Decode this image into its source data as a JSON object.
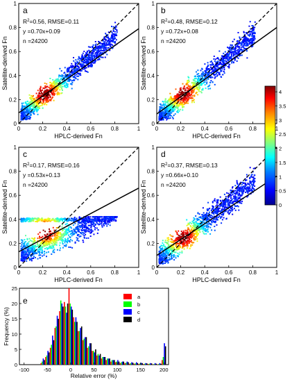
{
  "figure": {
    "colorbar": {
      "ticks": [
        "4",
        "3.5",
        "3",
        "2.5",
        "2",
        "1.5",
        "1",
        "0.5",
        "0"
      ],
      "range": [
        0,
        4.2
      ],
      "colormap": [
        "#00008f",
        "#0000ff",
        "#0080ff",
        "#00ffff",
        "#80ff80",
        "#ffff00",
        "#ff8000",
        "#ff0000",
        "#800000"
      ]
    }
  },
  "chart_data": [
    {
      "id": "a",
      "type": "scatter",
      "panel_label": "a",
      "xlabel": "HPLC-derived Fn",
      "ylabel": "Satellite-derived Fn",
      "xlim": [
        0,
        1
      ],
      "ylim": [
        0,
        1
      ],
      "xticks": [
        "0",
        "0.2",
        "0.4",
        "0.6",
        "0.8",
        "1"
      ],
      "yticks": [
        "0",
        "0.2",
        "0.4",
        "0.6",
        "0.8",
        "1"
      ],
      "stats": {
        "r2_prefix": "R",
        "r2_suffix": "=0.56, RMSE=0.11",
        "equation": "y =0.70x+0.09",
        "n": "n =24200"
      },
      "fit": {
        "slope": 0.7,
        "intercept": 0.09
      },
      "one_to_one": true
    },
    {
      "id": "b",
      "type": "scatter",
      "panel_label": "b",
      "xlabel": "HPLC-derived Fn",
      "ylabel": "Satellite-derived Fn",
      "xlim": [
        0,
        1
      ],
      "ylim": [
        0,
        1
      ],
      "xticks": [
        "0",
        "0.2",
        "0.4",
        "0.6",
        "0.8",
        "1"
      ],
      "yticks": [
        "0",
        "0.2",
        "0.4",
        "0.6",
        "0.8",
        "1"
      ],
      "stats": {
        "r2_prefix": "R",
        "r2_suffix": "=0.48, RMSE=0.12",
        "equation": "y =0.72x+0.08",
        "n": "n =24200"
      },
      "fit": {
        "slope": 0.72,
        "intercept": 0.08
      },
      "one_to_one": true
    },
    {
      "id": "c",
      "type": "scatter",
      "panel_label": "c",
      "xlabel": "HPLC-derived Fn",
      "ylabel": "Satellite-derived Fn",
      "xlim": [
        0,
        1
      ],
      "ylim": [
        0,
        1
      ],
      "xticks": [
        "0",
        "0.2",
        "0.4",
        "0.6",
        "0.8",
        "1"
      ],
      "yticks": [
        "0",
        "0.2",
        "0.4",
        "0.6",
        "0.8",
        "1"
      ],
      "stats": {
        "r2_prefix": "R",
        "r2_suffix": "=0.17, RMSE=0.16",
        "equation": "y =0.53x+0.13",
        "n": "n =24200"
      },
      "fit": {
        "slope": 0.53,
        "intercept": 0.13
      },
      "one_to_one": true
    },
    {
      "id": "d",
      "type": "scatter",
      "panel_label": "d",
      "xlabel": "HPLC-derived Fn",
      "ylabel": "Satellite-derived Fn",
      "xlim": [
        0,
        1
      ],
      "ylim": [
        0,
        1
      ],
      "xticks": [
        "0",
        "0.2",
        "0.4",
        "0.6",
        "0.8",
        "1"
      ],
      "yticks": [
        "0",
        "0.2",
        "0.4",
        "0.6",
        "0.8",
        "1"
      ],
      "stats": {
        "r2_prefix": "R",
        "r2_suffix": "=0.37, RMSE=0.13",
        "equation": "y =0.66x+0.10",
        "n": "n =24200"
      },
      "fit": {
        "slope": 0.66,
        "intercept": 0.1
      },
      "one_to_one": true
    },
    {
      "id": "e",
      "type": "bar",
      "panel_label": "e",
      "xlabel": "Relative error (%)",
      "ylabel": "Frequency (%)",
      "xlim": [
        -110,
        210
      ],
      "ylim": [
        0,
        25
      ],
      "xticks": [
        "-100",
        "-50",
        "0",
        "50",
        "100",
        "150",
        "200"
      ],
      "yticks": [
        "0",
        "5",
        "10",
        "15",
        "20",
        "25"
      ],
      "categories": [
        -60,
        -50,
        -40,
        -30,
        -20,
        -10,
        0,
        10,
        20,
        30,
        40,
        50,
        60,
        70,
        80,
        90,
        100,
        110,
        120,
        130,
        140,
        150,
        160,
        170,
        180,
        190,
        200
      ],
      "series": [
        {
          "name": "a",
          "color": "#ff0000",
          "values": [
            0.5,
            2.5,
            5.5,
            12,
            17.5,
            20.5,
            25,
            15.5,
            11,
            8,
            5.5,
            4.5,
            3,
            2,
            1.5,
            1,
            0.8,
            0.5,
            0.5,
            0.3,
            0.3,
            0.2,
            0.2,
            0.2,
            0.1,
            0.1,
            1.5
          ]
        },
        {
          "name": "b",
          "color": "#00ff00",
          "values": [
            1,
            3,
            6.5,
            12.5,
            21,
            19,
            20,
            14,
            11,
            8.5,
            6,
            4.5,
            3.5,
            2.5,
            2,
            1.5,
            1,
            0.8,
            0.6,
            0.5,
            0.4,
            0.4,
            0.3,
            0.3,
            0.2,
            0.2,
            2.5
          ]
        },
        {
          "name": "c",
          "color": "#0000ff",
          "values": [
            2,
            4.5,
            9.5,
            16,
            20,
            17,
            19,
            15.5,
            12,
            9,
            7,
            4,
            3,
            2.5,
            2,
            1.5,
            1.5,
            1,
            1,
            0.8,
            0.8,
            0.6,
            0.5,
            0.5,
            0.5,
            0.5,
            7
          ]
        },
        {
          "name": "d",
          "color": "#000000",
          "values": [
            1.5,
            4,
            8,
            15,
            19,
            20,
            18,
            14,
            12.5,
            9,
            7,
            5,
            3.5,
            2.5,
            2,
            1.5,
            1,
            1,
            0.8,
            0.6,
            0.5,
            0.5,
            0.4,
            0.4,
            0.3,
            0.3,
            6
          ]
        }
      ]
    }
  ]
}
